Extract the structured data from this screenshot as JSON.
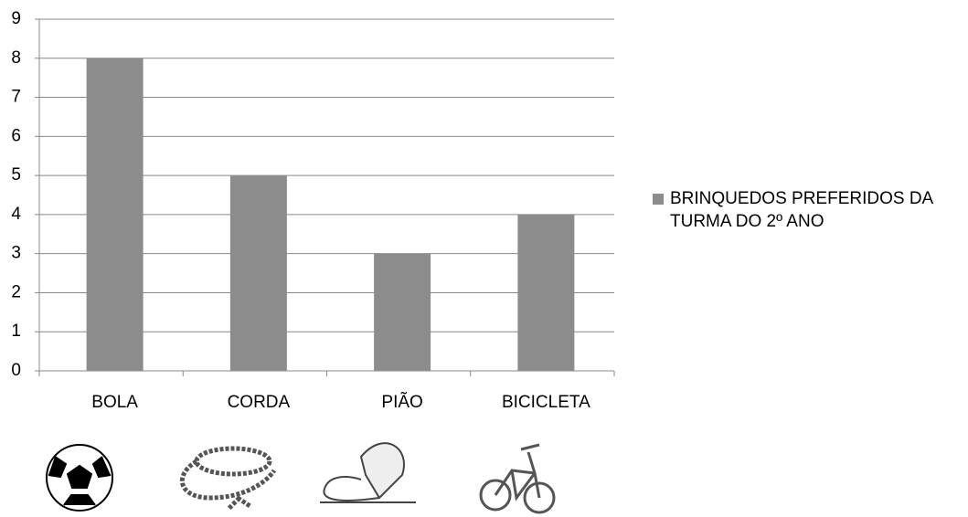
{
  "chart_data": {
    "type": "bar",
    "categories": [
      "BOLA",
      "CORDA",
      "PIÃO",
      "BICICLETA"
    ],
    "series": [
      {
        "name": "BRINQUEDOS PREFERIDOS DA TURMA DO 2º ANO",
        "color": "#8c8c8c",
        "values": [
          8,
          5,
          3,
          4
        ]
      }
    ],
    "ylim": [
      0,
      9
    ],
    "yticks": [
      0,
      1,
      2,
      3,
      4,
      5,
      6,
      7,
      8,
      9
    ],
    "grid": true,
    "legend": "right"
  }
}
